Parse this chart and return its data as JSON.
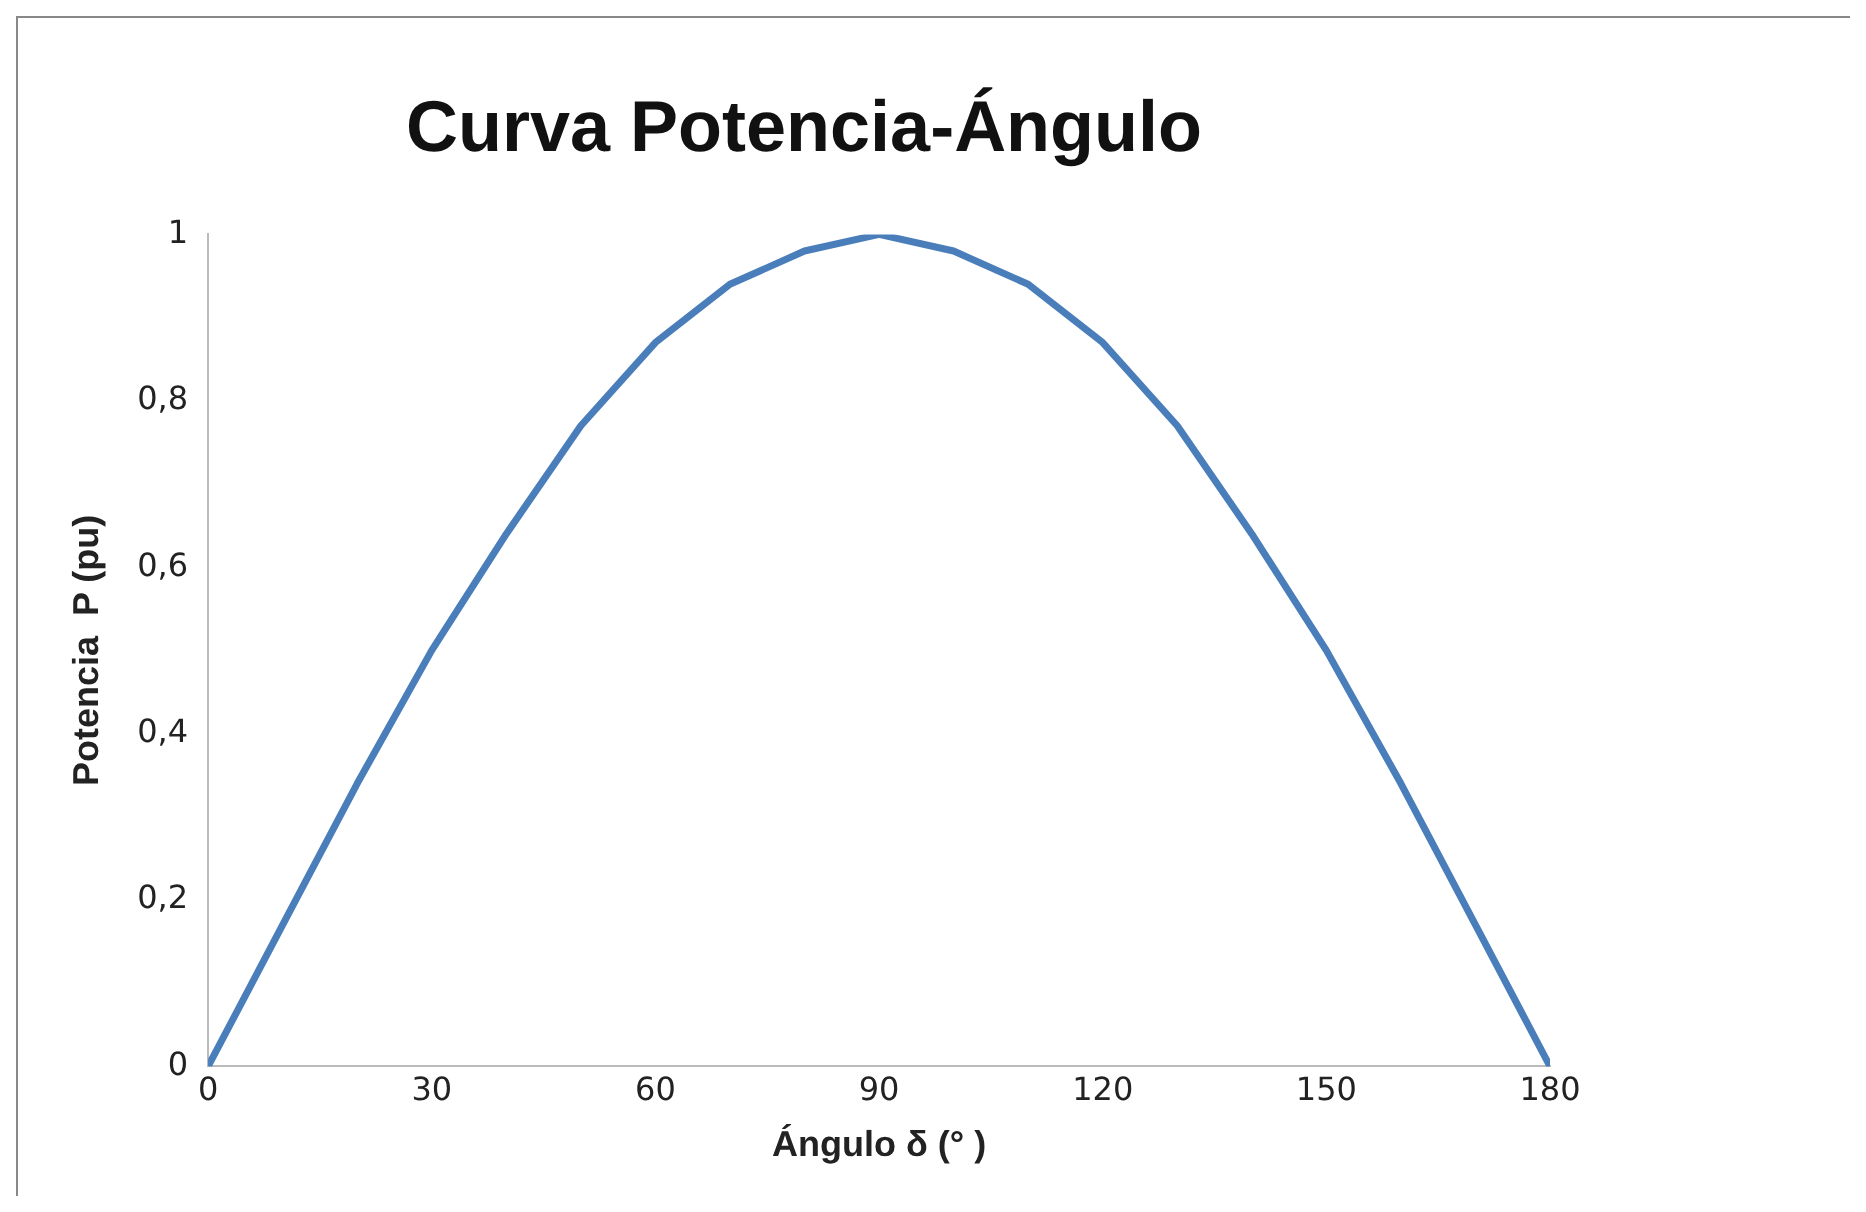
{
  "chart_data": {
    "type": "line",
    "title": "Curva Potencia-Ángulo",
    "xlabel": "Ángulo δ (° )",
    "ylabel": "Potencia  P (pu)",
    "x": [
      0,
      10,
      20,
      30,
      40,
      50,
      60,
      70,
      80,
      90,
      100,
      110,
      120,
      130,
      140,
      150,
      160,
      170,
      180
    ],
    "series": [
      {
        "color": "#4a7ebb",
        "values": [
          0,
          0.17,
          0.34,
          0.5,
          0.64,
          0.77,
          0.87,
          0.94,
          0.98,
          1,
          0.98,
          0.94,
          0.87,
          0.77,
          0.64,
          0.5,
          0.34,
          0.17,
          0
        ]
      }
    ],
    "xlim": [
      0,
      180
    ],
    "xticks": [
      0,
      30,
      60,
      90,
      120,
      150,
      180
    ],
    "ylim": [
      0,
      1
    ],
    "yticks": [
      0,
      {
        "value": 0.2,
        "label": "0,2"
      },
      {
        "value": 0.4,
        "label": "0,4"
      },
      {
        "value": 0.6,
        "label": "0,6"
      },
      {
        "value": 0.8,
        "label": "0,8"
      },
      1
    ],
    "grid": false,
    "legend": false,
    "marker": "none",
    "line_style": "solid"
  }
}
